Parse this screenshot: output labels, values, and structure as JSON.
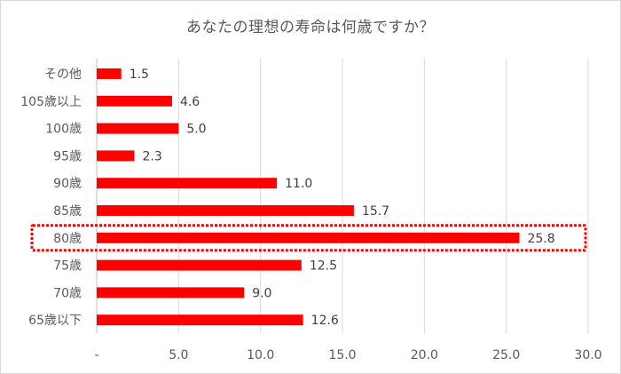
{
  "chart_data": {
    "type": "bar",
    "orientation": "horizontal",
    "title": "あなたの理想の寿命は何歳ですか？",
    "categories": [
      "その他",
      "105歳以上",
      "100歳",
      "95歳",
      "90歳",
      "85歳",
      "80歳",
      "75歳",
      "70歳",
      "65歳以下"
    ],
    "values": [
      1.5,
      4.6,
      5.0,
      2.3,
      11.0,
      15.7,
      25.8,
      12.5,
      9.0,
      12.6
    ],
    "value_labels": [
      "1.5",
      "4.6",
      "5.0",
      "2.3",
      "11.0",
      "15.7",
      "25.8",
      "12.5",
      "9.0",
      "12.6"
    ],
    "xlim": [
      0,
      30
    ],
    "x_ticks": [
      0,
      5,
      10,
      15,
      20,
      25,
      30
    ],
    "x_tick_labels": [
      "-",
      "5.0",
      "10.0",
      "15.0",
      "20.0",
      "25.0",
      "30.0"
    ],
    "grid": true,
    "legend": false,
    "highlighted_category": "80歳",
    "bar_color": "#ff0000",
    "highlight_color": "#ff0000"
  }
}
